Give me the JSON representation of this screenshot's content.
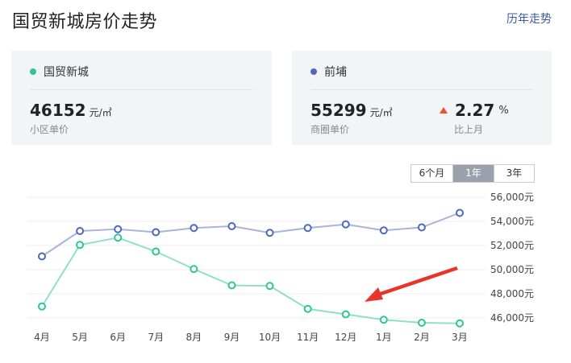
{
  "header": {
    "title": "国贸新城房价走势",
    "history_link": "历年走势"
  },
  "cards": {
    "community": {
      "name": "国贸新城",
      "dot_color": "#2ec693",
      "price": "46152",
      "unit": "元/㎡",
      "price_label": "小区单价"
    },
    "district": {
      "name": "前埔",
      "dot_color": "#4d68c2",
      "price": "55299",
      "unit": "元/㎡",
      "price_label": "商圈单价",
      "change": "2.27",
      "change_unit": "%",
      "change_direction": "up",
      "change_color": "#f04e37",
      "change_label": "比上月"
    }
  },
  "range_tabs": {
    "items": [
      "6个月",
      "1年",
      "3年"
    ],
    "selected": "1年"
  },
  "chart_data": {
    "type": "line",
    "categories": [
      "4月",
      "5月",
      "6月",
      "7月",
      "8月",
      "9月",
      "10月",
      "11月",
      "12月",
      "1月",
      "2月",
      "3月"
    ],
    "y_ticks": [
      "56,000元",
      "54,000元",
      "52,000元",
      "50,000元",
      "48,000元",
      "46,000元"
    ],
    "ylim": [
      45000,
      56000
    ],
    "grid": true,
    "legend": "none",
    "series": [
      {
        "name": "前埔",
        "color": "#a9b3db",
        "marker_color": "#4d68c2",
        "values": [
          51100,
          53200,
          53350,
          53100,
          53450,
          53600,
          53050,
          53450,
          53750,
          53250,
          53500,
          54700
        ]
      },
      {
        "name": "国贸新城",
        "color": "#8fe0c4",
        "marker_color": "#2ec693",
        "values": [
          46950,
          52050,
          52650,
          51500,
          50050,
          48700,
          48650,
          46750,
          46300,
          45850,
          45600,
          45550
        ]
      }
    ],
    "annotation": {
      "type": "arrow",
      "color": "#e8352a"
    }
  }
}
